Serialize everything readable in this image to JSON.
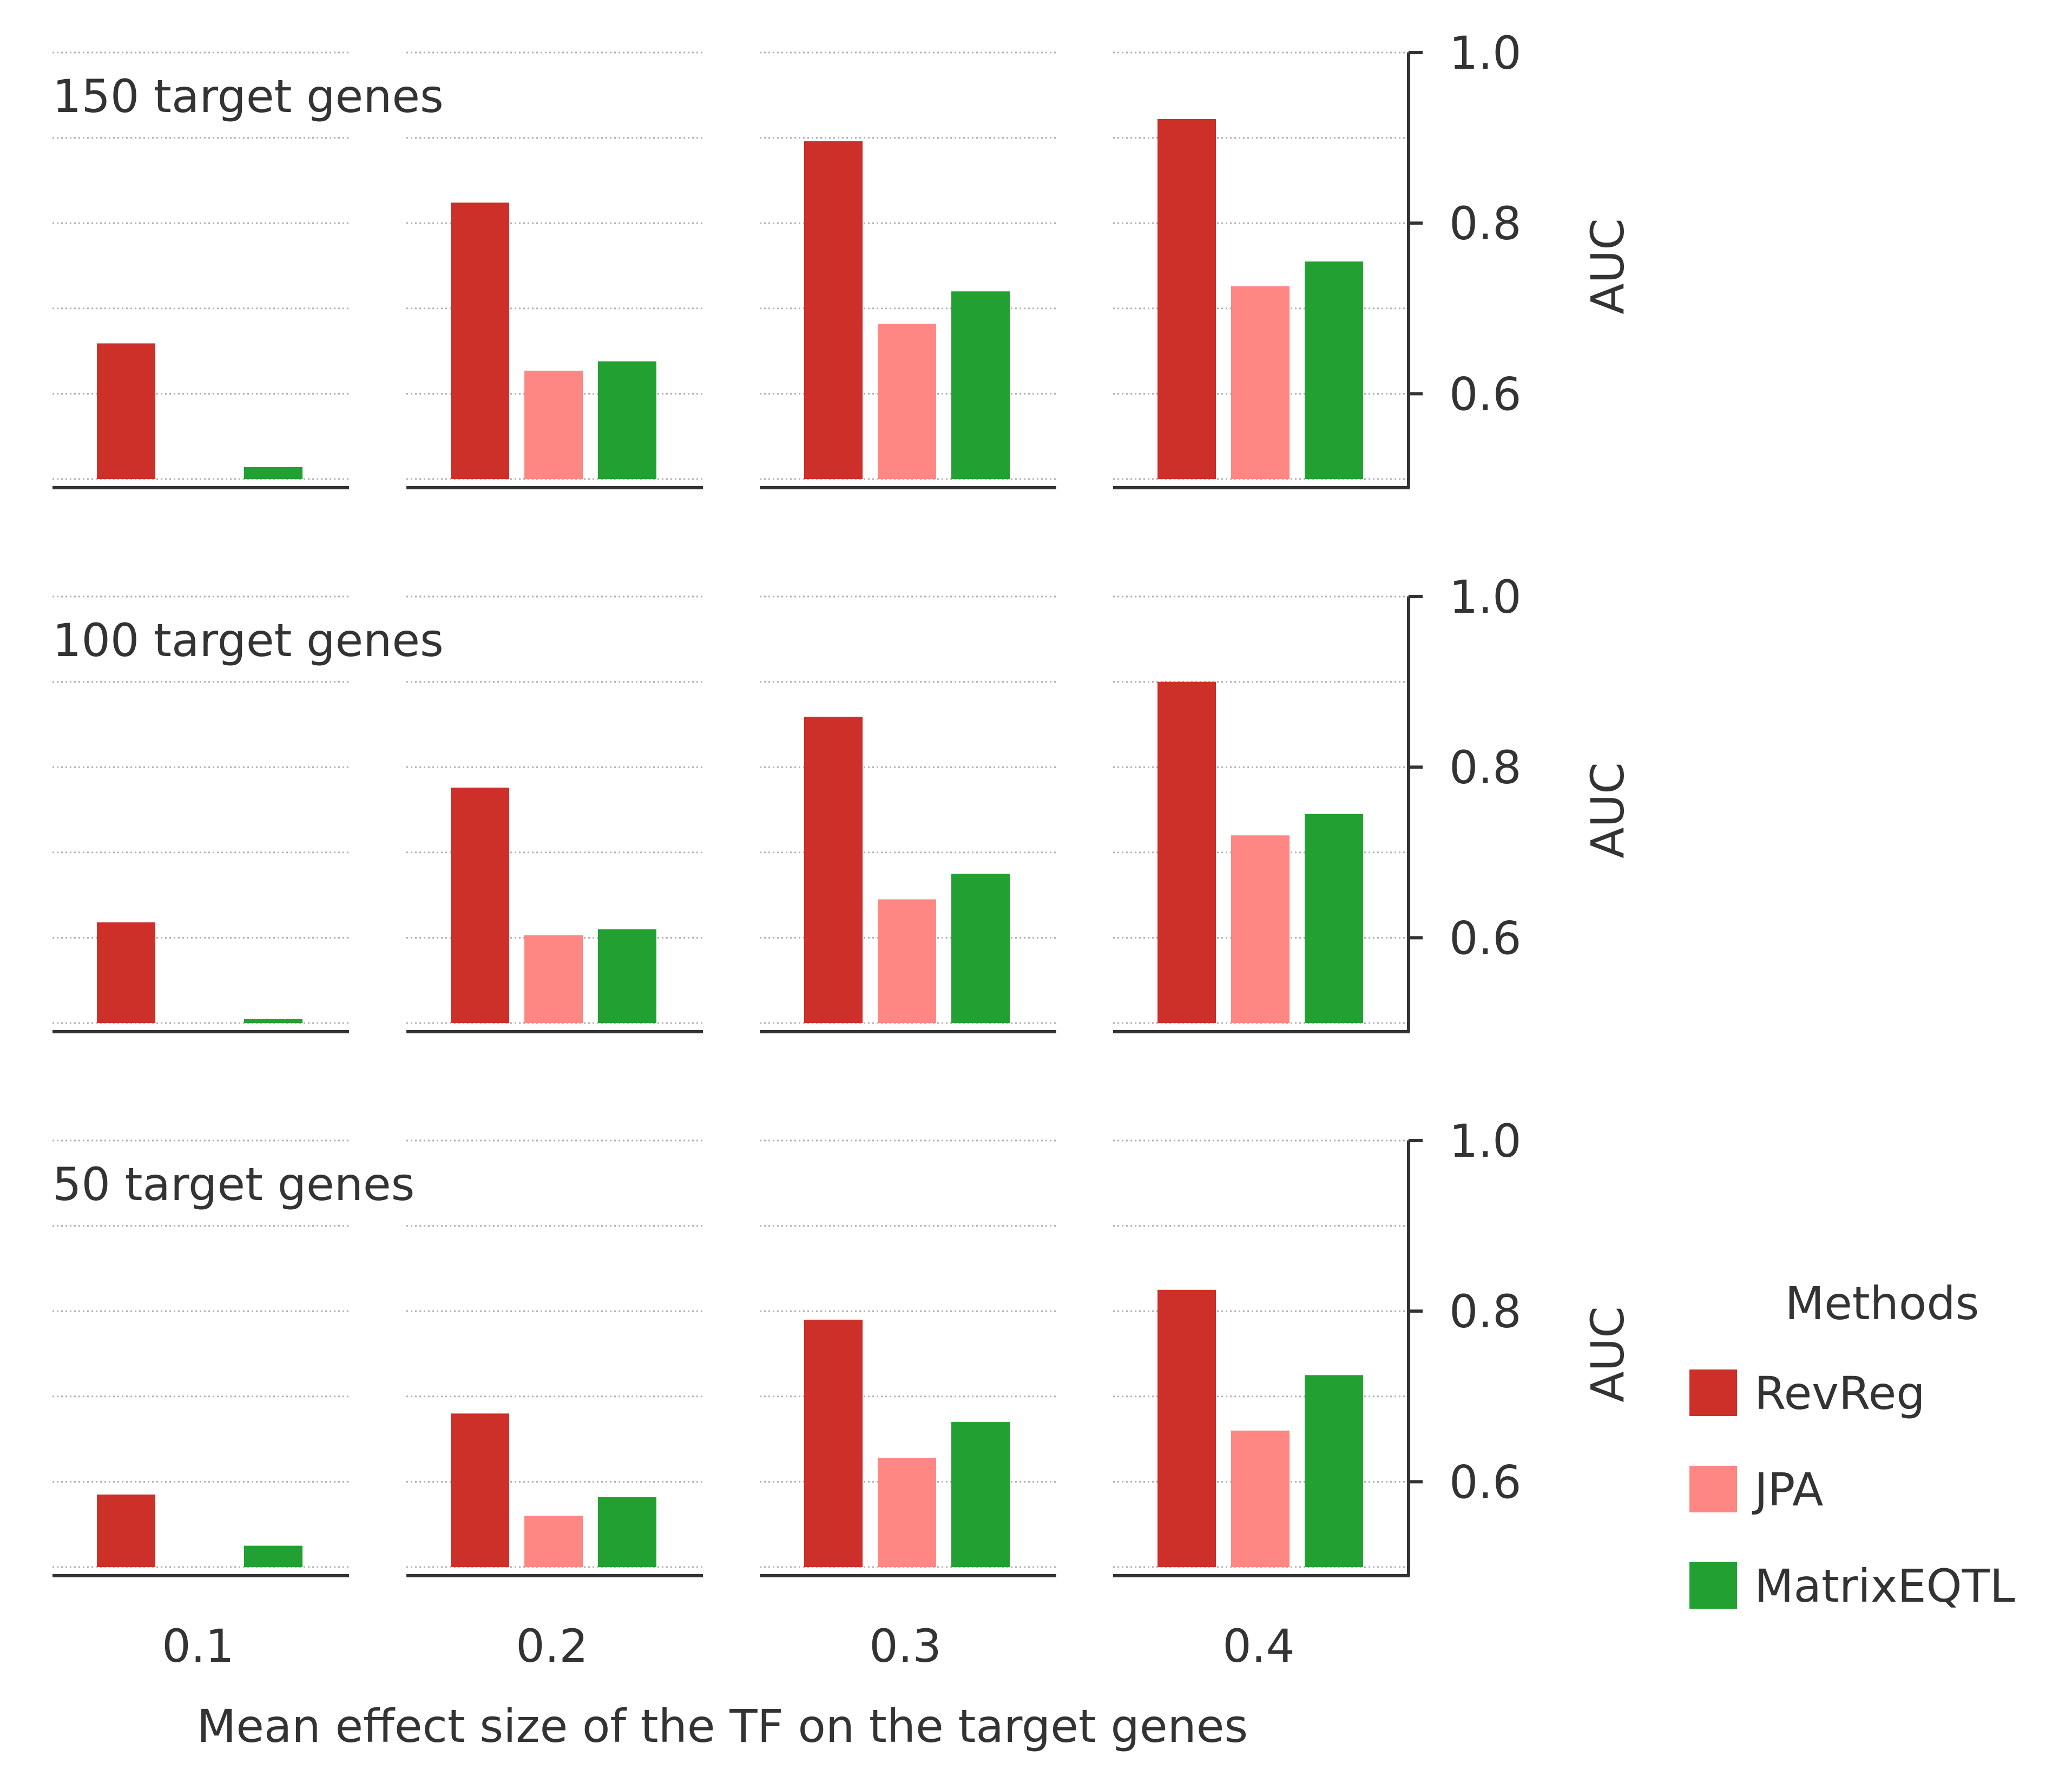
{
  "colors": {
    "revreg": "#cc3029",
    "jpa": "#fe8784",
    "matrixeqtl": "#22a032",
    "axis": "#333333",
    "grid": "#b0b0b0",
    "text": "#333333"
  },
  "chart_data": {
    "type": "bar",
    "xlabel": "Mean effect size of the TF on the target genes",
    "ylabel": "AUC",
    "ylim": [
      0.5,
      1.0
    ],
    "yticks": [
      "0.6",
      "0.8",
      "1.0"
    ],
    "groups": [
      "0.1",
      "0.2",
      "0.3",
      "0.4"
    ],
    "grid": "horizontal dotted",
    "legend": {
      "title": "Methods",
      "placement": "right",
      "entries": [
        "RevReg",
        "JPA",
        "MatrixEQTL"
      ]
    },
    "series_colors": [
      "revreg",
      "jpa",
      "matrixeqtl"
    ],
    "rows": [
      {
        "label": "150 target genes",
        "values": [
          [
            0.659,
            0.49,
            0.514
          ],
          [
            0.824,
            0.627,
            0.638
          ],
          [
            0.896,
            0.682,
            0.72
          ],
          [
            0.922,
            0.726,
            0.755
          ]
        ]
      },
      {
        "label": "100 target genes",
        "values": [
          [
            0.618,
            0.49,
            0.505
          ],
          [
            0.776,
            0.603,
            0.61
          ],
          [
            0.859,
            0.645,
            0.675
          ],
          [
            0.9,
            0.72,
            0.745
          ]
        ]
      },
      {
        "label": "50 target genes",
        "values": [
          [
            0.585,
            0.49,
            0.525
          ],
          [
            0.68,
            0.56,
            0.582
          ],
          [
            0.79,
            0.628,
            0.67
          ],
          [
            0.825,
            0.66,
            0.725
          ]
        ]
      }
    ]
  }
}
